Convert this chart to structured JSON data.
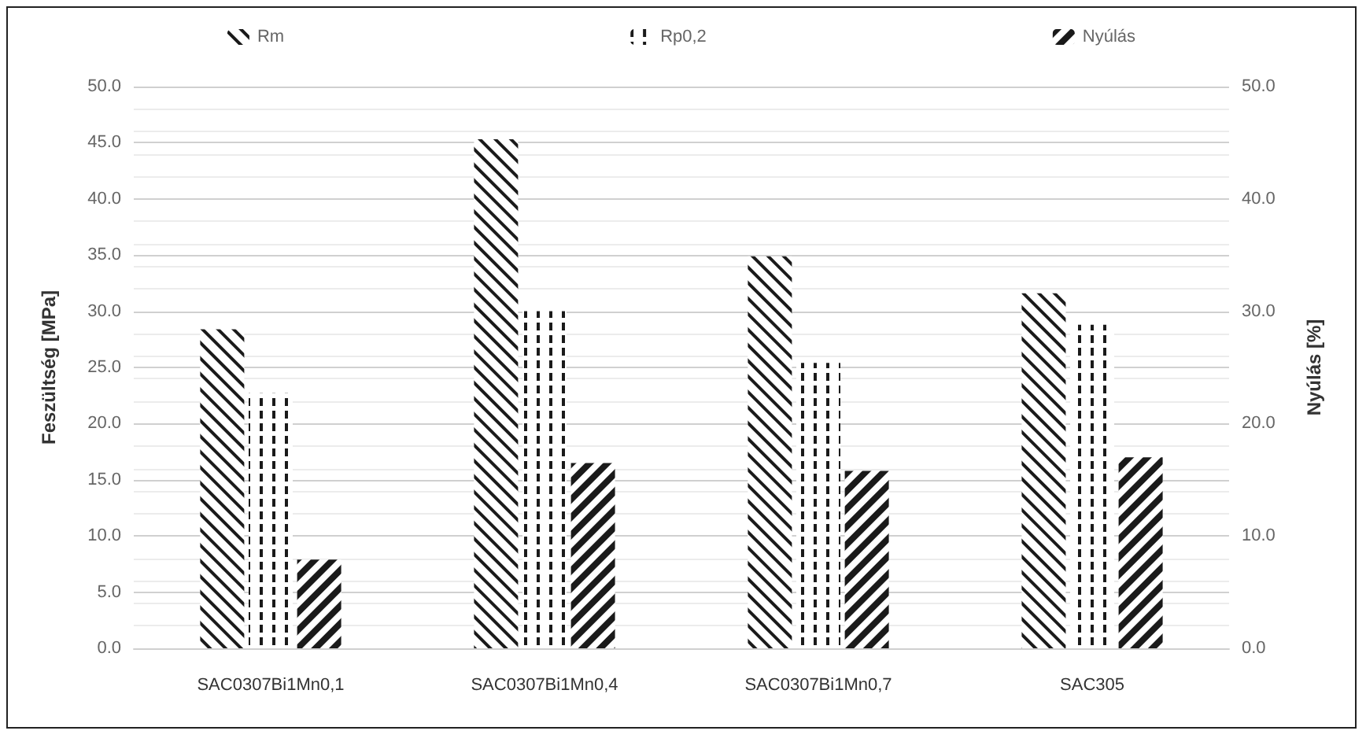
{
  "chart_data": {
    "type": "bar",
    "ylabel": "Feszültség [MPa]",
    "y2label": "Nyúlás [%]",
    "categories": [
      "SAC0307Bi1Mn0,1",
      "SAC0307Bi1Mn0,4",
      "SAC0307Bi1Mn0,7",
      "SAC305"
    ],
    "series": [
      {
        "name": "Rm",
        "color": "#1a1a1a",
        "values": [
          28.4,
          45.3,
          34.9,
          31.6
        ]
      },
      {
        "name": "Rp0,2",
        "color": "#1a1a1a",
        "values": [
          22.7,
          30.0,
          25.4,
          28.8
        ]
      },
      {
        "name": "Nyúlás",
        "color": "#1a1a1a",
        "axis": "y2",
        "values": [
          7.9,
          16.5,
          15.8,
          17.0
        ]
      }
    ],
    "ylim": [
      0,
      50
    ],
    "yticks": [
      {
        "value": 0,
        "label": "0.0"
      },
      {
        "value": 5,
        "label": "5.0"
      },
      {
        "value": 10,
        "label": "10.0"
      },
      {
        "value": 15,
        "label": "15.0"
      },
      {
        "value": 20,
        "label": "20.0"
      },
      {
        "value": 25,
        "label": "25.0"
      },
      {
        "value": 30,
        "label": "30.0"
      },
      {
        "value": 35,
        "label": "35.0"
      },
      {
        "value": 40,
        "label": "40.0"
      },
      {
        "value": 45,
        "label": "45.0"
      },
      {
        "value": 50,
        "label": "50.0"
      }
    ],
    "y2lim": [
      0,
      50
    ],
    "y2ticks": [
      {
        "value": 0,
        "label": "0.0"
      },
      {
        "value": 10,
        "label": "10.0"
      },
      {
        "value": 20,
        "label": "20.0"
      },
      {
        "value": 30,
        "label": "30.0"
      },
      {
        "value": 40,
        "label": "40.0"
      },
      {
        "value": 50,
        "label": "50.0"
      }
    ],
    "grid": "y",
    "legend": "top"
  }
}
